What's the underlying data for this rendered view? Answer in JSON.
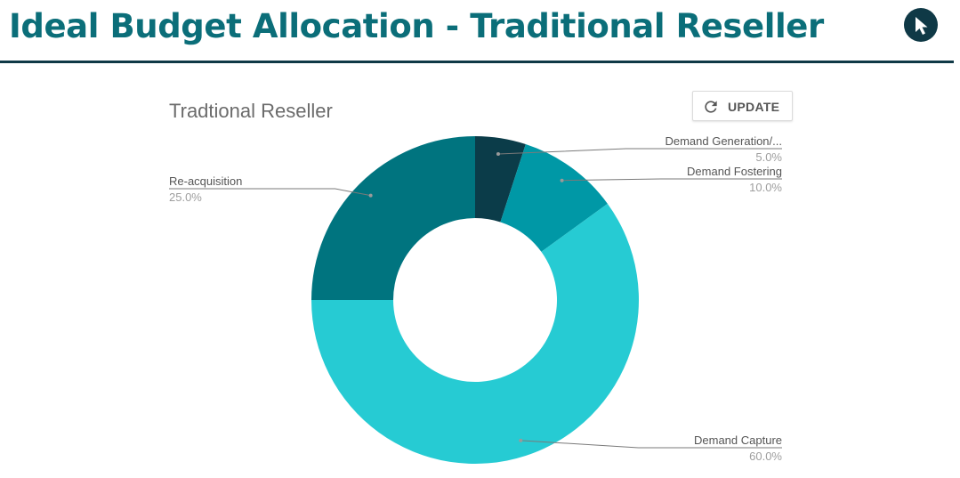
{
  "header": {
    "title": "Ideal Budget Allocation - Traditional Reseller",
    "cursor_icon": "cursor-arrow-icon"
  },
  "toolbar": {
    "update_label": "UPDATE",
    "update_icon": "refresh-icon"
  },
  "colors": {
    "title": "#0b6e79",
    "rule": "#0f3946",
    "slice_demand_generation": "#0b3c49",
    "slice_demand_fostering": "#0098a6",
    "slice_demand_capture": "#26cbd3",
    "slice_reacquisition": "#00747f"
  },
  "chart_data": {
    "type": "pie",
    "donut": true,
    "title": "Tradtional Reseller",
    "unit": "%",
    "slices": [
      {
        "name": "Demand Generation/...",
        "value": 5.0,
        "label": "5.0%",
        "color": "#0b3c49"
      },
      {
        "name": "Demand Fostering",
        "value": 10.0,
        "label": "10.0%",
        "color": "#0098a6"
      },
      {
        "name": "Demand Capture",
        "value": 60.0,
        "label": "60.0%",
        "color": "#26cbd3"
      },
      {
        "name": "Re-acquisition",
        "value": 25.0,
        "label": "25.0%",
        "color": "#00747f"
      }
    ],
    "start_angle_deg": 0,
    "direction": "clockwise",
    "legend": "labeled-lines"
  }
}
